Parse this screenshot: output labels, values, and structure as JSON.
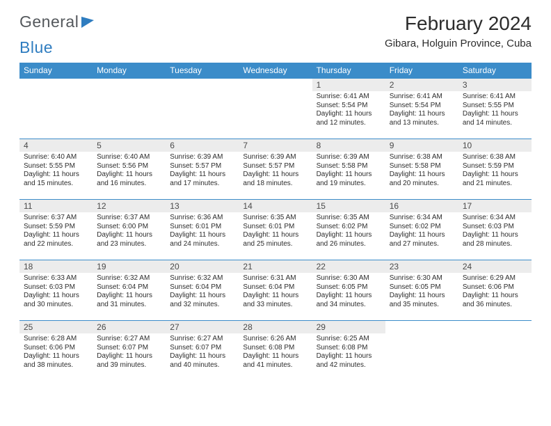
{
  "logo": {
    "text_a": "General",
    "text_b": "Blue"
  },
  "title": {
    "month": "February 2024",
    "location": "Gibara, Holguin Province, Cuba"
  },
  "header_bg": "#3b8cc9",
  "header_fg": "#ffffff",
  "daynum_bg": "#ececec",
  "border_color": "#3b8cc9",
  "font_family": "Arial",
  "weekdays": [
    "Sunday",
    "Monday",
    "Tuesday",
    "Wednesday",
    "Thursday",
    "Friday",
    "Saturday"
  ],
  "weeks": [
    [
      null,
      null,
      null,
      null,
      {
        "d": "1",
        "sunrise": "6:41 AM",
        "sunset": "5:54 PM",
        "day_h": "11",
        "day_m": "12"
      },
      {
        "d": "2",
        "sunrise": "6:41 AM",
        "sunset": "5:54 PM",
        "day_h": "11",
        "day_m": "13"
      },
      {
        "d": "3",
        "sunrise": "6:41 AM",
        "sunset": "5:55 PM",
        "day_h": "11",
        "day_m": "14"
      }
    ],
    [
      {
        "d": "4",
        "sunrise": "6:40 AM",
        "sunset": "5:55 PM",
        "day_h": "11",
        "day_m": "15"
      },
      {
        "d": "5",
        "sunrise": "6:40 AM",
        "sunset": "5:56 PM",
        "day_h": "11",
        "day_m": "16"
      },
      {
        "d": "6",
        "sunrise": "6:39 AM",
        "sunset": "5:57 PM",
        "day_h": "11",
        "day_m": "17"
      },
      {
        "d": "7",
        "sunrise": "6:39 AM",
        "sunset": "5:57 PM",
        "day_h": "11",
        "day_m": "18"
      },
      {
        "d": "8",
        "sunrise": "6:39 AM",
        "sunset": "5:58 PM",
        "day_h": "11",
        "day_m": "19"
      },
      {
        "d": "9",
        "sunrise": "6:38 AM",
        "sunset": "5:58 PM",
        "day_h": "11",
        "day_m": "20"
      },
      {
        "d": "10",
        "sunrise": "6:38 AM",
        "sunset": "5:59 PM",
        "day_h": "11",
        "day_m": "21"
      }
    ],
    [
      {
        "d": "11",
        "sunrise": "6:37 AM",
        "sunset": "5:59 PM",
        "day_h": "11",
        "day_m": "22"
      },
      {
        "d": "12",
        "sunrise": "6:37 AM",
        "sunset": "6:00 PM",
        "day_h": "11",
        "day_m": "23"
      },
      {
        "d": "13",
        "sunrise": "6:36 AM",
        "sunset": "6:01 PM",
        "day_h": "11",
        "day_m": "24"
      },
      {
        "d": "14",
        "sunrise": "6:35 AM",
        "sunset": "6:01 PM",
        "day_h": "11",
        "day_m": "25"
      },
      {
        "d": "15",
        "sunrise": "6:35 AM",
        "sunset": "6:02 PM",
        "day_h": "11",
        "day_m": "26"
      },
      {
        "d": "16",
        "sunrise": "6:34 AM",
        "sunset": "6:02 PM",
        "day_h": "11",
        "day_m": "27"
      },
      {
        "d": "17",
        "sunrise": "6:34 AM",
        "sunset": "6:03 PM",
        "day_h": "11",
        "day_m": "28"
      }
    ],
    [
      {
        "d": "18",
        "sunrise": "6:33 AM",
        "sunset": "6:03 PM",
        "day_h": "11",
        "day_m": "30"
      },
      {
        "d": "19",
        "sunrise": "6:32 AM",
        "sunset": "6:04 PM",
        "day_h": "11",
        "day_m": "31"
      },
      {
        "d": "20",
        "sunrise": "6:32 AM",
        "sunset": "6:04 PM",
        "day_h": "11",
        "day_m": "32"
      },
      {
        "d": "21",
        "sunrise": "6:31 AM",
        "sunset": "6:04 PM",
        "day_h": "11",
        "day_m": "33"
      },
      {
        "d": "22",
        "sunrise": "6:30 AM",
        "sunset": "6:05 PM",
        "day_h": "11",
        "day_m": "34"
      },
      {
        "d": "23",
        "sunrise": "6:30 AM",
        "sunset": "6:05 PM",
        "day_h": "11",
        "day_m": "35"
      },
      {
        "d": "24",
        "sunrise": "6:29 AM",
        "sunset": "6:06 PM",
        "day_h": "11",
        "day_m": "36"
      }
    ],
    [
      {
        "d": "25",
        "sunrise": "6:28 AM",
        "sunset": "6:06 PM",
        "day_h": "11",
        "day_m": "38"
      },
      {
        "d": "26",
        "sunrise": "6:27 AM",
        "sunset": "6:07 PM",
        "day_h": "11",
        "day_m": "39"
      },
      {
        "d": "27",
        "sunrise": "6:27 AM",
        "sunset": "6:07 PM",
        "day_h": "11",
        "day_m": "40"
      },
      {
        "d": "28",
        "sunrise": "6:26 AM",
        "sunset": "6:08 PM",
        "day_h": "11",
        "day_m": "41"
      },
      {
        "d": "29",
        "sunrise": "6:25 AM",
        "sunset": "6:08 PM",
        "day_h": "11",
        "day_m": "42"
      },
      null,
      null
    ]
  ],
  "labels": {
    "sunrise_prefix": "Sunrise: ",
    "sunset_prefix": "Sunset: ",
    "daylight_tpl_a": "Daylight: ",
    "daylight_tpl_b": " hours and ",
    "daylight_tpl_c": " minutes."
  }
}
